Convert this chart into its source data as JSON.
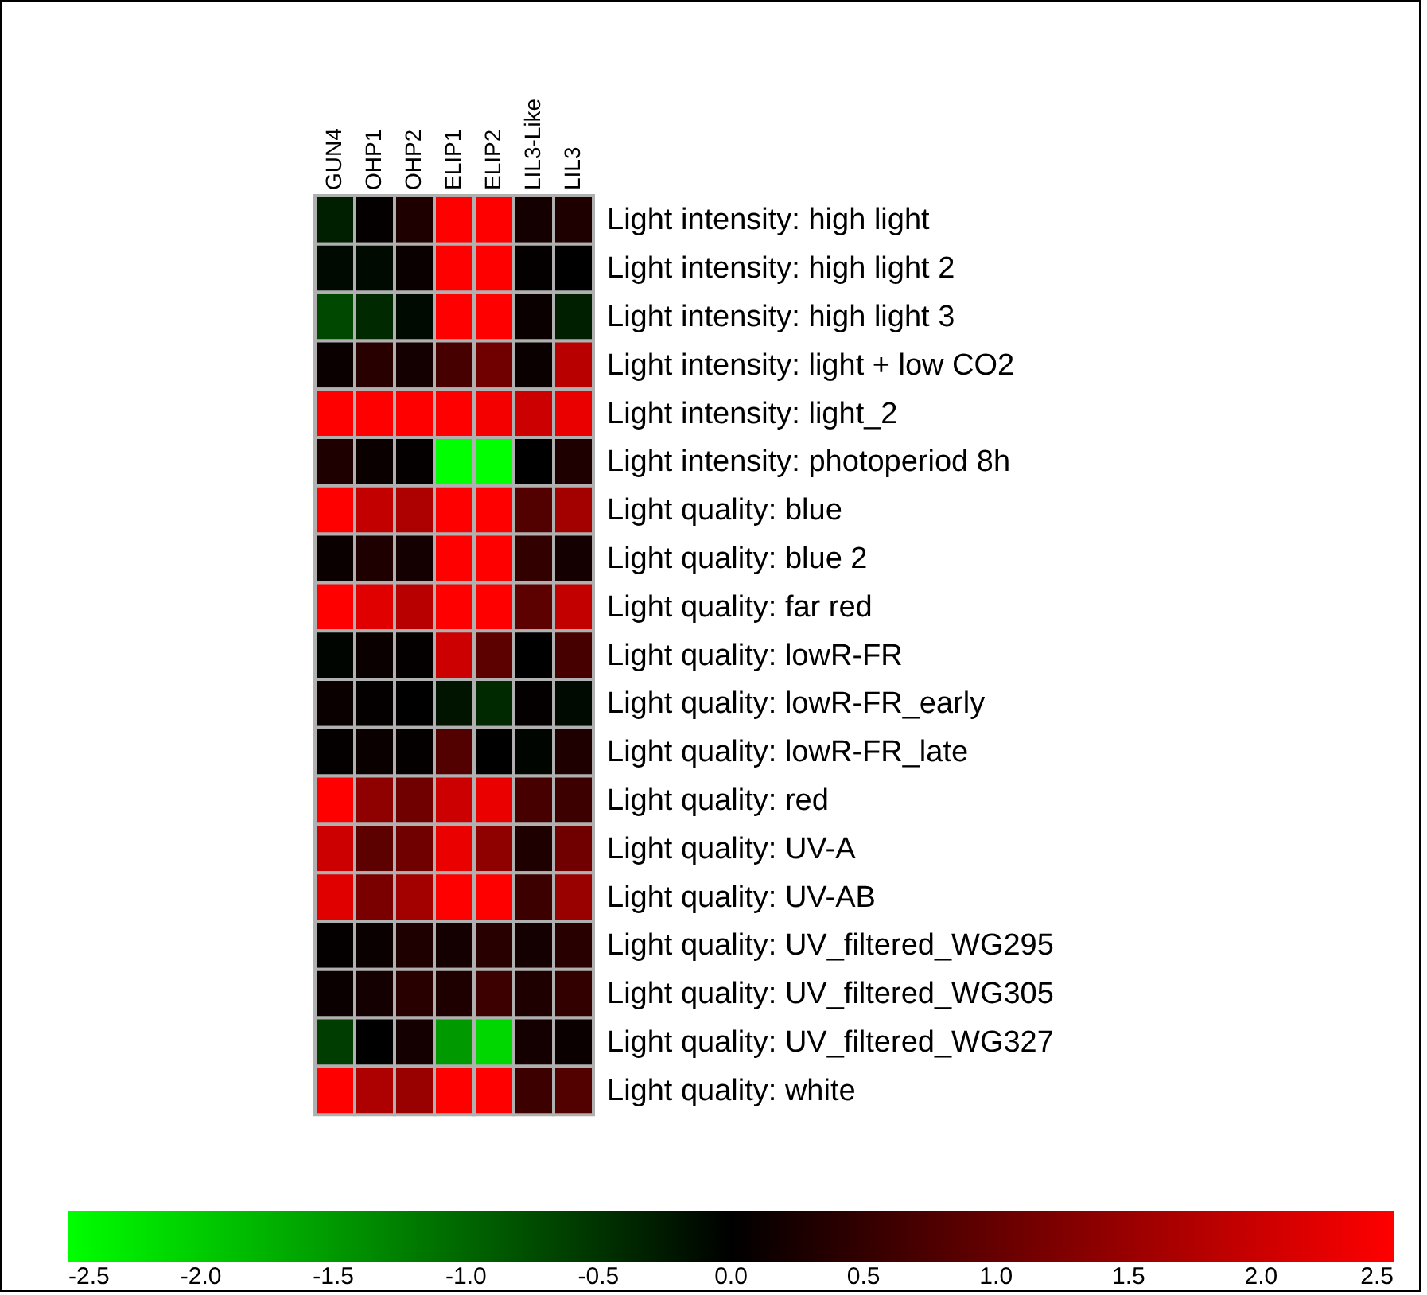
{
  "chart_data": {
    "type": "heatmap",
    "categories": [
      "GUN4",
      "OHP1",
      "OHP2",
      "ELIP1",
      "ELIP2",
      "LIL3-Like",
      "LIL3"
    ],
    "y_categories": [
      "Light intensity: high light",
      "Light intensity: high light 2",
      "Light intensity: high light 3",
      "Light intensity: light + low CO2",
      "Light intensity: light_2",
      "Light intensity: photoperiod 8h",
      "Light quality: blue",
      "Light quality: blue 2",
      "Light quality: far red",
      "Light quality: lowR-FR",
      "Light quality: lowR-FR_early",
      "Light quality: lowR-FR_late",
      "Light quality: red",
      "Light quality: UV-A",
      "Light quality: UV-AB",
      "Light quality: UV_filtered_WG295",
      "Light quality: UV_filtered_WG305",
      "Light quality: UV_filtered_WG327",
      "Light quality: white"
    ],
    "cells": [
      [
        -0.3,
        0.05,
        0.3,
        2.5,
        2.5,
        0.2,
        0.3
      ],
      [
        -0.1,
        -0.1,
        0.1,
        2.5,
        2.5,
        0.05,
        0
      ],
      [
        -0.7,
        -0.4,
        -0.1,
        2.5,
        2.5,
        0.1,
        -0.3
      ],
      [
        0.1,
        0.4,
        0.2,
        0.7,
        1.1,
        0.1,
        1.8
      ],
      [
        2.5,
        2.5,
        2.5,
        2.5,
        2.4,
        2.0,
        2.3
      ],
      [
        0.3,
        0.1,
        0.05,
        -2.5,
        -2.5,
        0,
        0.3
      ],
      [
        2.5,
        1.9,
        1.7,
        2.5,
        2.5,
        0.8,
        1.6
      ],
      [
        0.1,
        0.3,
        0.2,
        2.5,
        2.5,
        0.5,
        0.2
      ],
      [
        2.5,
        2.2,
        1.8,
        2.5,
        2.5,
        0.9,
        1.9
      ],
      [
        -0.05,
        0.1,
        0.05,
        2.0,
        0.9,
        0,
        0.7
      ],
      [
        0.1,
        0.05,
        0,
        -0.2,
        -0.4,
        0.05,
        -0.1
      ],
      [
        0.05,
        0.1,
        0.05,
        0.8,
        0,
        -0.05,
        0.3
      ],
      [
        2.5,
        1.4,
        1.1,
        2.0,
        2.3,
        0.7,
        0.6
      ],
      [
        2.0,
        0.9,
        1.1,
        2.3,
        1.4,
        0.3,
        1.1
      ],
      [
        2.2,
        1.2,
        1.6,
        2.5,
        2.5,
        0.6,
        1.5
      ],
      [
        0.05,
        0.1,
        0.3,
        0.2,
        0.4,
        0.2,
        0.4
      ],
      [
        0.1,
        0.2,
        0.4,
        0.3,
        0.6,
        0.3,
        0.5
      ],
      [
        -0.6,
        0,
        0.2,
        -1.5,
        -2.1,
        0.2,
        0.1
      ],
      [
        2.5,
        1.7,
        1.5,
        2.5,
        2.5,
        0.6,
        0.8
      ]
    ],
    "clim": [
      -2.5,
      2.5
    ],
    "cticks": [
      {
        "value": -2.5,
        "label": "-2.5"
      },
      {
        "value": -2,
        "label": "-2.0"
      },
      {
        "value": -1.5,
        "label": "-1.5"
      },
      {
        "value": -1,
        "label": "-1.0"
      },
      {
        "value": -0.5,
        "label": "-0.5"
      },
      {
        "value": 0,
        "label": "0.0"
      },
      {
        "value": 0.5,
        "label": "0.5"
      },
      {
        "value": 1,
        "label": "1.0"
      },
      {
        "value": 1.5,
        "label": "1.5"
      },
      {
        "value": 2,
        "label": "2.0"
      },
      {
        "value": 2.5,
        "label": "2.5"
      }
    ]
  }
}
